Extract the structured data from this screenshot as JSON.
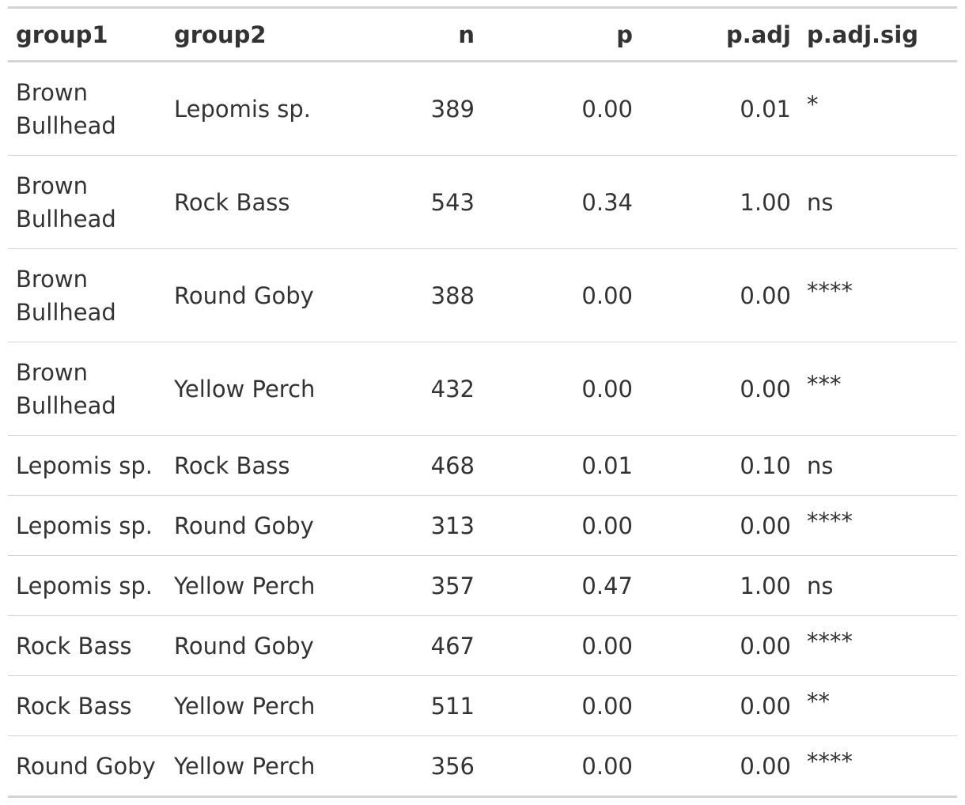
{
  "table": {
    "headers": [
      "group1",
      "group2",
      "n",
      "p",
      "p.adj",
      "p.adj.sig"
    ],
    "rows": [
      [
        "Brown Bullhead",
        "Lepomis sp.",
        "389",
        "0.00",
        "0.01",
        "*"
      ],
      [
        "Brown Bullhead",
        "Rock Bass",
        "543",
        "0.34",
        "1.00",
        "ns"
      ],
      [
        "Brown Bullhead",
        "Round Goby",
        "388",
        "0.00",
        "0.00",
        "****"
      ],
      [
        "Brown Bullhead",
        "Yellow Perch",
        "432",
        "0.00",
        "0.00",
        "***"
      ],
      [
        "Lepomis sp.",
        "Rock Bass",
        "468",
        "0.01",
        "0.10",
        "ns"
      ],
      [
        "Lepomis sp.",
        "Round Goby",
        "313",
        "0.00",
        "0.00",
        "****"
      ],
      [
        "Lepomis sp.",
        "Yellow Perch",
        "357",
        "0.47",
        "1.00",
        "ns"
      ],
      [
        "Rock Bass",
        "Round Goby",
        "467",
        "0.00",
        "0.00",
        "****"
      ],
      [
        "Rock Bass",
        "Yellow Perch",
        "511",
        "0.00",
        "0.00",
        "**"
      ],
      [
        "Round Goby",
        "Yellow Perch",
        "356",
        "0.00",
        "0.00",
        "****"
      ]
    ]
  }
}
